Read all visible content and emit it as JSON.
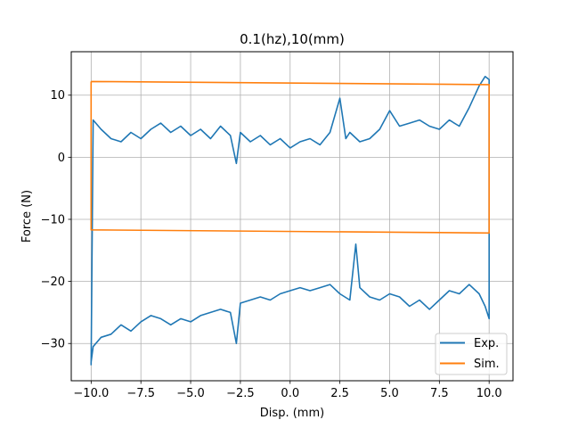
{
  "chart_data": {
    "type": "line",
    "title": "0.1(hz),10(mm)",
    "xlabel": "Disp. (mm)",
    "ylabel": "Force (N)",
    "xlim": [
      -11.0,
      11.2
    ],
    "ylim": [
      -36.0,
      17.0
    ],
    "x_ticks": [
      -10.0,
      -7.5,
      -5.0,
      -2.5,
      0.0,
      2.5,
      5.0,
      7.5,
      10.0
    ],
    "x_tick_labels": [
      "−10.0",
      "−7.5",
      "−5.0",
      "−2.5",
      "0.0",
      "2.5",
      "5.0",
      "7.5",
      "10.0"
    ],
    "y_ticks": [
      -30,
      -20,
      -10,
      0,
      10
    ],
    "y_tick_labels": [
      "−30",
      "−20",
      "−10",
      "0",
      "10"
    ],
    "grid": true,
    "legend_position": "bottom-right",
    "series": [
      {
        "name": "Exp.",
        "color": "#1f77b4",
        "x": [
          -10.0,
          -9.9,
          -9.5,
          -9.0,
          -8.5,
          -8.0,
          -7.5,
          -7.0,
          -6.5,
          -6.0,
          -5.5,
          -5.0,
          -4.5,
          -4.0,
          -3.5,
          -3.0,
          -2.7,
          -2.5,
          -2.0,
          -1.5,
          -1.0,
          -0.5,
          0.0,
          0.5,
          1.0,
          1.5,
          2.0,
          2.5,
          2.8,
          3.0,
          3.5,
          4.0,
          4.5,
          5.0,
          5.5,
          6.0,
          6.5,
          7.0,
          7.5,
          8.0,
          8.5,
          9.0,
          9.5,
          9.8,
          10.0,
          10.0,
          9.8,
          9.5,
          9.0,
          8.5,
          8.0,
          7.5,
          7.0,
          6.5,
          6.0,
          5.5,
          5.0,
          4.5,
          4.0,
          3.5,
          3.3,
          3.0,
          2.5,
          2.0,
          1.5,
          1.0,
          0.5,
          0.0,
          -0.5,
          -1.0,
          -1.5,
          -2.0,
          -2.5,
          -2.7,
          -3.0,
          -3.5,
          -4.0,
          -4.5,
          -5.0,
          -5.5,
          -6.0,
          -6.5,
          -7.0,
          -7.5,
          -8.0,
          -8.5,
          -9.0,
          -9.5,
          -9.9,
          -10.0,
          -10.0
        ],
        "y": [
          -33.5,
          6.0,
          4.5,
          3.0,
          2.5,
          4.0,
          3.0,
          4.5,
          5.5,
          4.0,
          5.0,
          3.5,
          4.5,
          3.0,
          5.0,
          3.5,
          -1.0,
          4.0,
          2.5,
          3.5,
          2.0,
          3.0,
          1.5,
          2.5,
          3.0,
          2.0,
          4.0,
          9.5,
          3.0,
          4.0,
          2.5,
          3.0,
          4.5,
          7.5,
          5.0,
          5.5,
          6.0,
          5.0,
          4.5,
          6.0,
          5.0,
          8.0,
          11.5,
          13.0,
          12.5,
          -26.0,
          -24.0,
          -22.0,
          -20.5,
          -22.0,
          -21.5,
          -23.0,
          -24.5,
          -23.0,
          -24.0,
          -22.5,
          -22.0,
          -23.0,
          -22.5,
          -21.0,
          -14.0,
          -23.0,
          -22.0,
          -20.5,
          -21.0,
          -21.5,
          -21.0,
          -21.5,
          -22.0,
          -23.0,
          -22.5,
          -23.0,
          -23.5,
          -30.0,
          -25.0,
          -24.5,
          -25.0,
          -25.5,
          -26.5,
          -26.0,
          -27.0,
          -26.0,
          -25.5,
          -26.5,
          -28.0,
          -27.0,
          -28.5,
          -29.0,
          -30.5,
          -33.0,
          -33.5
        ]
      },
      {
        "name": "Sim.",
        "color": "#ff7f0e",
        "x": [
          -10.0,
          10.0,
          10.0,
          -10.0,
          -10.0
        ],
        "y": [
          12.2,
          11.7,
          -12.2,
          -11.7,
          12.2
        ]
      }
    ]
  }
}
